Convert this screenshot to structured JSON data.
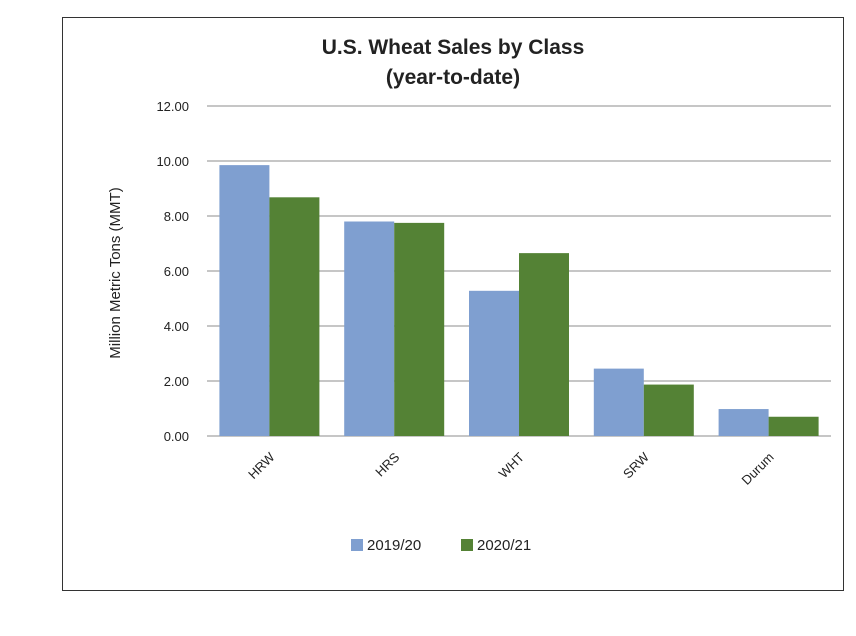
{
  "chart_data": {
    "type": "bar",
    "title": "U.S. Wheat Sales by Class",
    "subtitle": "(year-to-date)",
    "xlabel": "",
    "ylabel": "Million Metric Tons (MMT)",
    "categories": [
      "HRW",
      "HRS",
      "WHT",
      "SRW",
      "Durum"
    ],
    "series": [
      {
        "name": "2019/20",
        "color": "#7f9fd0",
        "values": [
          9.85,
          7.8,
          5.28,
          2.45,
          0.98
        ]
      },
      {
        "name": "2020/21",
        "color": "#548235",
        "values": [
          8.68,
          7.75,
          6.65,
          1.87,
          0.7
        ]
      }
    ],
    "ylim": [
      0,
      12
    ],
    "yticks": [
      0,
      2,
      4,
      6,
      8,
      10,
      12
    ],
    "ytick_labels": [
      "0.00",
      "2.00",
      "4.00",
      "6.00",
      "8.00",
      "10.00",
      "12.00"
    ],
    "grid": true,
    "legend_position": "bottom"
  }
}
